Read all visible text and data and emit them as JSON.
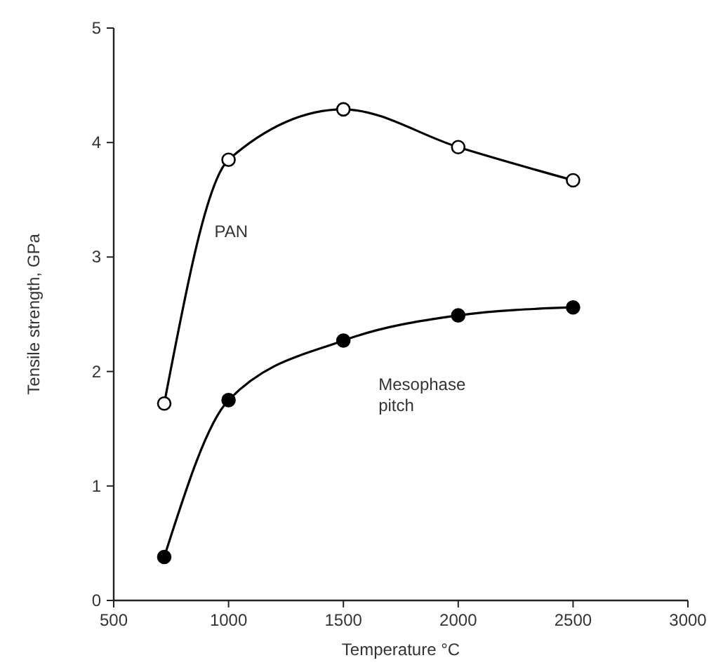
{
  "chart_data": {
    "type": "line",
    "xlabel": "Temperature °C",
    "ylabel": "Tensile strength, GPa",
    "xlim": [
      500,
      3000
    ],
    "ylim": [
      0,
      5
    ],
    "xticks": [
      500,
      1000,
      1500,
      2000,
      2500,
      3000
    ],
    "yticks": [
      0,
      1,
      2,
      3,
      4,
      5
    ],
    "grid": false,
    "marker": "circle",
    "line_style": "solid",
    "series": [
      {
        "name": "PAN",
        "color": "#000000",
        "x": [
          720,
          1000,
          1500,
          2000,
          2500
        ],
        "values": [
          1.72,
          3.85,
          4.29,
          3.96,
          3.67
        ]
      },
      {
        "name": "Mesophase pitch",
        "color": "#000000",
        "x": [
          720,
          1000,
          1500,
          2000,
          2500
        ],
        "values": [
          0.38,
          1.75,
          2.27,
          2.49,
          2.56
        ]
      }
    ]
  }
}
